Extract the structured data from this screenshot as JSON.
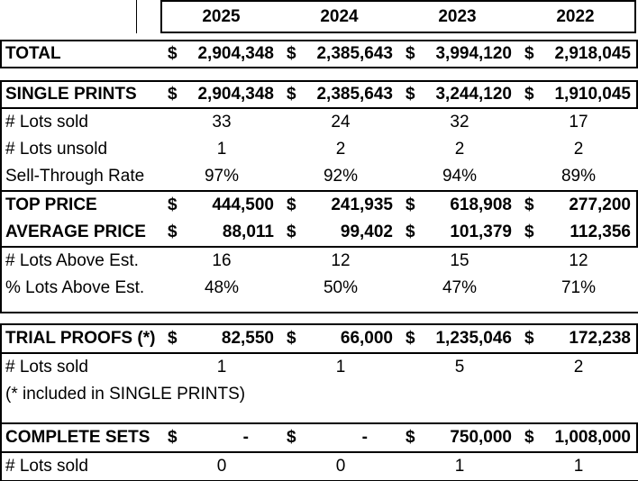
{
  "colors": {
    "background": "#ffffff",
    "text": "#000000",
    "border": "#000000"
  },
  "table": {
    "years": [
      "2025",
      "2024",
      "2023",
      "2022"
    ],
    "rows": {
      "total": {
        "label": "TOTAL",
        "currency": "$",
        "values": [
          "2,904,348",
          "2,385,643",
          "3,994,120",
          "2,918,045"
        ]
      },
      "single_prints": {
        "label": "SINGLE PRINTS",
        "currency": "$",
        "values": [
          "2,904,348",
          "2,385,643",
          "3,244,120",
          "1,910,045"
        ]
      },
      "sp_lots_sold": {
        "label": "# Lots sold",
        "values": [
          "33",
          "24",
          "32",
          "17"
        ]
      },
      "sp_lots_unsold": {
        "label": "# Lots unsold",
        "values": [
          "1",
          "2",
          "2",
          "2"
        ]
      },
      "sp_sell_through": {
        "label": "Sell-Through Rate",
        "values": [
          "97%",
          "92%",
          "94%",
          "89%"
        ]
      },
      "top_price": {
        "label": "TOP PRICE",
        "currency": "$",
        "values": [
          "444,500",
          "241,935",
          "618,908",
          "277,200"
        ]
      },
      "average_price": {
        "label": "AVERAGE PRICE",
        "currency": "$",
        "values": [
          "88,011",
          "99,402",
          "101,379",
          "112,356"
        ]
      },
      "lots_above": {
        "label": "# Lots Above Est.",
        "values": [
          "16",
          "12",
          "15",
          "12"
        ]
      },
      "pct_above": {
        "label": "% Lots Above Est.",
        "values": [
          "48%",
          "50%",
          "47%",
          "71%"
        ]
      },
      "trial_proofs": {
        "label": "TRIAL PROOFS (*)",
        "currency": "$",
        "values": [
          "82,550",
          "66,000",
          "1,235,046",
          "172,238"
        ]
      },
      "tp_lots_sold": {
        "label": "# Lots sold",
        "values": [
          "1",
          "1",
          "5",
          "2"
        ]
      },
      "tp_note": {
        "label": "(* included in SINGLE PRINTS)"
      },
      "complete_sets": {
        "label": "COMPLETE SETS",
        "currency": "$",
        "values": [
          "-",
          "-",
          "750,000",
          "1,008,000"
        ]
      },
      "cs_lots_sold": {
        "label": "# Lots sold",
        "values": [
          "0",
          "0",
          "1",
          "1"
        ]
      }
    }
  }
}
